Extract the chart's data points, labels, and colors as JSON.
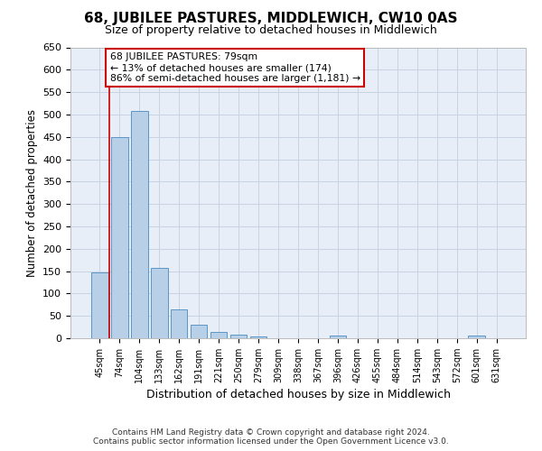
{
  "title": "68, JUBILEE PASTURES, MIDDLEWICH, CW10 0AS",
  "subtitle": "Size of property relative to detached houses in Middlewich",
  "xlabel": "Distribution of detached houses by size in Middlewich",
  "ylabel": "Number of detached properties",
  "categories": [
    "45sqm",
    "74sqm",
    "104sqm",
    "133sqm",
    "162sqm",
    "191sqm",
    "221sqm",
    "250sqm",
    "279sqm",
    "309sqm",
    "338sqm",
    "367sqm",
    "396sqm",
    "426sqm",
    "455sqm",
    "484sqm",
    "514sqm",
    "543sqm",
    "572sqm",
    "601sqm",
    "631sqm"
  ],
  "values": [
    148,
    450,
    507,
    158,
    65,
    30,
    14,
    9,
    5,
    0,
    0,
    0,
    7,
    0,
    0,
    0,
    0,
    0,
    0,
    6,
    0
  ],
  "bar_color": "#b8cfe8",
  "bar_edge_color": "#5b96c8",
  "grid_color": "#c8d4e4",
  "background_color": "#e8eef8",
  "vline_color": "#cc0000",
  "vline_x": 0.5,
  "annotation_line1": "68 JUBILEE PASTURES: 79sqm",
  "annotation_line2": "← 13% of detached houses are smaller (174)",
  "annotation_line3": "86% of semi-detached houses are larger (1,181) →",
  "annotation_box_edgecolor": "#cc0000",
  "annotation_box_facecolor": "#ffffff",
  "ylim": [
    0,
    650
  ],
  "yticks": [
    0,
    50,
    100,
    150,
    200,
    250,
    300,
    350,
    400,
    450,
    500,
    550,
    600,
    650
  ],
  "footer1": "Contains HM Land Registry data © Crown copyright and database right 2024.",
  "footer2": "Contains public sector information licensed under the Open Government Licence v3.0."
}
